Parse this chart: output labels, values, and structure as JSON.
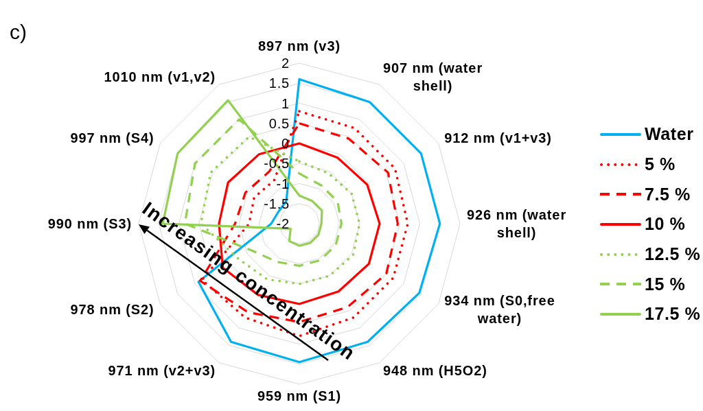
{
  "chart_data": {
    "type": "radar",
    "title": "c)",
    "categories": [
      "897 nm (v3)",
      "907 nm (water shell)",
      "912 nm (v1+v3)",
      "926 nm (water shell)",
      "934 nm (S0,free water)",
      "948 nm (H5O2)",
      "959 nm (S1)",
      "971 nm (v2+v3)",
      "978 nm (S2)",
      "990 nm (S3)",
      "997 nm (S4)",
      "1010 nm (v1,v2)"
    ],
    "series": [
      {
        "name": "Water",
        "color": "#00b0f0",
        "line_style": "solid",
        "values": [
          1.6,
          1.5,
          1.5,
          1.5,
          1.45,
          1.4,
          1.45,
          1.4,
          0.9,
          -1.3,
          -1.4,
          -1.35
        ]
      },
      {
        "name": "5 %",
        "color": "#ff0000",
        "line_style": "dotted",
        "values": [
          0.8,
          0.75,
          0.75,
          0.7,
          0.7,
          0.7,
          0.8,
          0.7,
          0.8,
          -0.75,
          -0.7,
          -0.75
        ]
      },
      {
        "name": "7.5 %",
        "color": "#ff0000",
        "line_style": "dashed",
        "values": [
          0.5,
          0.45,
          0.55,
          0.45,
          0.5,
          0.4,
          0.45,
          0.55,
          0.85,
          -0.4,
          -0.45,
          -0.5
        ]
      },
      {
        "name": "10 %",
        "color": "#ff0000",
        "line_style": "solid",
        "values": [
          0,
          -0.1,
          -0.05,
          0,
          0,
          -0.05,
          0,
          0.05,
          0.2,
          0,
          0.05,
          0
        ]
      },
      {
        "name": "12.5 %",
        "color": "#92d050",
        "line_style": "dotted",
        "values": [
          -0.45,
          -0.55,
          -0.5,
          -0.5,
          -0.45,
          -0.5,
          -0.5,
          -0.4,
          -0.25,
          0.45,
          0.55,
          0.5
        ]
      },
      {
        "name": "15 %",
        "color": "#92d050",
        "line_style": "dashed",
        "values": [
          -0.75,
          -0.9,
          -0.9,
          -0.95,
          -0.95,
          -0.95,
          -0.95,
          -0.9,
          -0.65,
          0.85,
          1.0,
          1.0
        ]
      },
      {
        "name": "17.5 %",
        "color": "#92d050",
        "line_style": "solid",
        "values": [
          -1.3,
          -1.35,
          -1.35,
          -1.45,
          -1.45,
          -1.45,
          -1.45,
          -1.5,
          -1.75,
          1.4,
          1.5,
          1.55
        ]
      }
    ],
    "ylim": [
      -2,
      2
    ],
    "yticks": [
      -2,
      -1.5,
      -1,
      -0.5,
      0,
      0.5,
      1,
      1.5,
      2
    ],
    "grid": true,
    "legend": "right",
    "annotations": [
      "Increasing concentration"
    ]
  }
}
